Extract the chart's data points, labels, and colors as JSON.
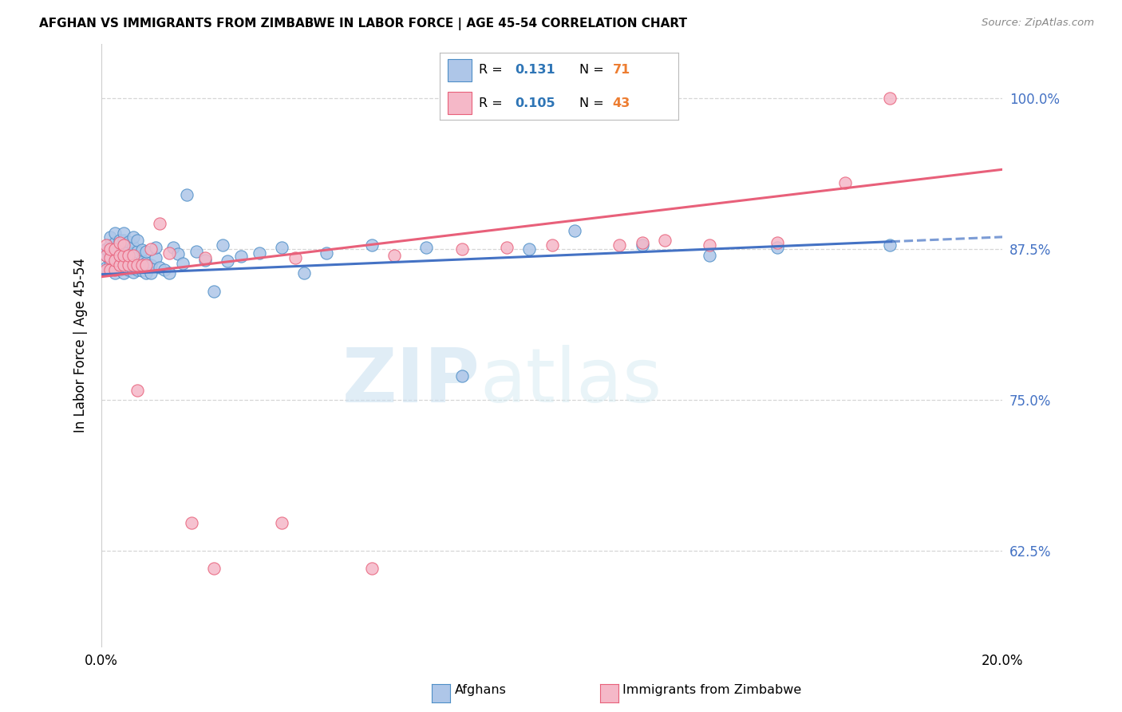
{
  "title": "AFGHAN VS IMMIGRANTS FROM ZIMBABWE IN LABOR FORCE | AGE 45-54 CORRELATION CHART",
  "source": "Source: ZipAtlas.com",
  "ylabel": "In Labor Force | Age 45-54",
  "ytick_values": [
    0.625,
    0.75,
    0.875,
    1.0
  ],
  "xmin": 0.0,
  "xmax": 0.2,
  "ymin": 0.545,
  "ymax": 1.045,
  "afghans_color": "#aec6e8",
  "zimbabwe_color": "#f5b8c8",
  "afghans_edge_color": "#4e8fc7",
  "zimbabwe_edge_color": "#e8607a",
  "afghans_line_color": "#4472c4",
  "zimbabwe_line_color": "#e8607a",
  "legend_R_color": "#2e75b6",
  "legend_N_color": "#ed7d31",
  "afghans_R": 0.131,
  "afghans_N": 71,
  "zimbabwe_R": 0.105,
  "zimbabwe_N": 43,
  "afghans_x": [
    0.001,
    0.001,
    0.001,
    0.002,
    0.002,
    0.002,
    0.002,
    0.003,
    0.003,
    0.003,
    0.003,
    0.003,
    0.004,
    0.004,
    0.004,
    0.004,
    0.005,
    0.005,
    0.005,
    0.005,
    0.005,
    0.005,
    0.006,
    0.006,
    0.006,
    0.006,
    0.007,
    0.007,
    0.007,
    0.007,
    0.007,
    0.008,
    0.008,
    0.008,
    0.008,
    0.009,
    0.009,
    0.009,
    0.01,
    0.01,
    0.01,
    0.011,
    0.011,
    0.012,
    0.012,
    0.013,
    0.014,
    0.015,
    0.016,
    0.017,
    0.018,
    0.019,
    0.021,
    0.023,
    0.025,
    0.027,
    0.028,
    0.031,
    0.035,
    0.04,
    0.045,
    0.05,
    0.06,
    0.072,
    0.08,
    0.095,
    0.105,
    0.12,
    0.135,
    0.15,
    0.175
  ],
  "afghans_y": [
    0.86,
    0.87,
    0.875,
    0.862,
    0.87,
    0.878,
    0.885,
    0.855,
    0.865,
    0.872,
    0.88,
    0.888,
    0.858,
    0.867,
    0.875,
    0.882,
    0.855,
    0.863,
    0.87,
    0.876,
    0.882,
    0.888,
    0.858,
    0.866,
    0.873,
    0.881,
    0.856,
    0.864,
    0.871,
    0.877,
    0.885,
    0.858,
    0.865,
    0.873,
    0.882,
    0.857,
    0.866,
    0.874,
    0.855,
    0.864,
    0.873,
    0.855,
    0.862,
    0.868,
    0.876,
    0.86,
    0.858,
    0.855,
    0.876,
    0.871,
    0.863,
    0.92,
    0.873,
    0.866,
    0.84,
    0.878,
    0.865,
    0.869,
    0.872,
    0.876,
    0.855,
    0.872,
    0.878,
    0.876,
    0.77,
    0.875,
    0.89,
    0.878,
    0.87,
    0.876,
    0.878
  ],
  "zimbabwe_x": [
    0.001,
    0.001,
    0.001,
    0.002,
    0.002,
    0.002,
    0.003,
    0.003,
    0.003,
    0.004,
    0.004,
    0.004,
    0.005,
    0.005,
    0.005,
    0.006,
    0.006,
    0.007,
    0.007,
    0.008,
    0.008,
    0.009,
    0.01,
    0.011,
    0.013,
    0.015,
    0.02,
    0.023,
    0.025,
    0.04,
    0.043,
    0.06,
    0.065,
    0.08,
    0.09,
    0.1,
    0.115,
    0.12,
    0.125,
    0.135,
    0.15,
    0.165,
    0.175
  ],
  "zimbabwe_y": [
    0.858,
    0.87,
    0.878,
    0.858,
    0.868,
    0.875,
    0.858,
    0.866,
    0.875,
    0.862,
    0.87,
    0.88,
    0.862,
    0.87,
    0.878,
    0.862,
    0.87,
    0.862,
    0.87,
    0.862,
    0.758,
    0.862,
    0.862,
    0.875,
    0.896,
    0.872,
    0.648,
    0.868,
    0.61,
    0.648,
    0.868,
    0.61,
    0.87,
    0.875,
    0.876,
    0.878,
    0.878,
    0.88,
    0.882,
    0.878,
    0.88,
    0.93,
    1.0
  ],
  "watermark_zip": "ZIP",
  "watermark_atlas": "atlas",
  "background_color": "#ffffff",
  "grid_color": "#cccccc",
  "tick_color": "#4472c4",
  "afghan_line_intercept": 0.854,
  "afghan_line_slope": 0.155,
  "zimbabwe_line_intercept": 0.852,
  "zimbabwe_line_slope": 0.445
}
